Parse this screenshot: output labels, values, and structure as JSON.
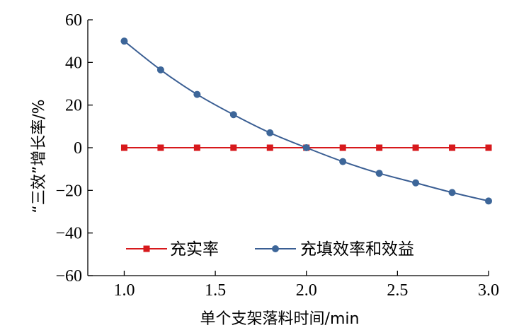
{
  "colors": {
    "red_series": "#d7191c",
    "blue_series": "#3a5e93",
    "blue_marker": "#3d6699",
    "axis": "#000000"
  },
  "chart_data": {
    "type": "line",
    "title": "",
    "xlabel": "单个支架落料时间/min",
    "ylabel": "“三效”增长率/%",
    "xlim": [
      0.8,
      3.0
    ],
    "ylim": [
      -60,
      60
    ],
    "xticks": [
      1.0,
      1.5,
      2.0,
      2.5,
      3.0
    ],
    "xtick_labels": [
      "1.0",
      "1.5",
      "2.0",
      "2.5",
      "3.0"
    ],
    "yticks": [
      60,
      40,
      20,
      0,
      -20,
      -40,
      -60
    ],
    "ytick_labels": [
      "60",
      "40",
      "20",
      "0",
      "−20",
      "−40",
      "−60"
    ],
    "grid": false,
    "legend_position": "lower-center",
    "x": [
      1.0,
      1.2,
      1.4,
      1.6,
      1.8,
      2.0,
      2.2,
      2.4,
      2.6,
      2.8,
      3.0
    ],
    "series": [
      {
        "name": "充实率",
        "marker": "square",
        "color": "#d7191c",
        "values": [
          0,
          0,
          0,
          0,
          0,
          0,
          0,
          0,
          0,
          0,
          0
        ]
      },
      {
        "name": "充填效率和效益",
        "marker": "circle",
        "color": "#3a5e93",
        "values": [
          50,
          36.5,
          25,
          15.5,
          7,
          0,
          -6.5,
          -12,
          -16.5,
          -21,
          -25
        ]
      }
    ]
  }
}
